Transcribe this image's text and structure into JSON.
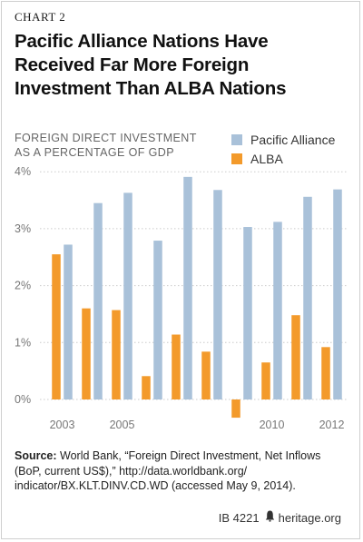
{
  "header": {
    "chart_number": "CHART 2",
    "title_lines": [
      "Pacific Alliance Nations Have",
      "Received Far More Foreign",
      "Investment Than ALBA Nations"
    ]
  },
  "axis": {
    "ylabel_lines": [
      "FOREIGN DIRECT INVESTMENT",
      "AS A PERCENTAGE OF GDP"
    ]
  },
  "chart_data": {
    "type": "bar",
    "title": "Pacific Alliance Nations Have Received Far More Foreign Investment Than ALBA Nations",
    "ylabel": "FOREIGN DIRECT INVESTMENT AS A PERCENTAGE OF GDP",
    "categories": [
      "2003",
      "2004",
      "2005",
      "2006",
      "2007",
      "2008",
      "2009",
      "2010",
      "2011",
      "2012"
    ],
    "x_tick_labels": [
      "2003",
      "",
      "2005",
      "",
      "",
      "",
      "",
      "2010",
      "",
      "2012"
    ],
    "y_ticks": [
      "0%",
      "1%",
      "2%",
      "3%",
      "4%"
    ],
    "ylim": [
      -0.35,
      4
    ],
    "grid": true,
    "legend_position": "top-right",
    "series": [
      {
        "name": "Pacific Alliance",
        "color": "#a9c1d9",
        "values": [
          2.72,
          3.45,
          3.63,
          2.79,
          3.91,
          3.68,
          3.03,
          3.12,
          3.56,
          3.69
        ]
      },
      {
        "name": "ALBA",
        "color": "#f39a2b",
        "values": [
          2.55,
          1.6,
          1.57,
          0.41,
          1.14,
          0.84,
          -0.32,
          0.65,
          1.48,
          0.92
        ]
      }
    ]
  },
  "source": {
    "label": "Source:",
    "lines": [
      " World Bank, “Foreign Direct Investment, Net Inflows",
      "(BoP, current US$),” http://data.worldbank.org/",
      "indicator/BX.KLT.DINV.CD.WD (accessed May 9, 2014)."
    ]
  },
  "footer": {
    "id": "IB 4221",
    "site": "heritage.org"
  }
}
